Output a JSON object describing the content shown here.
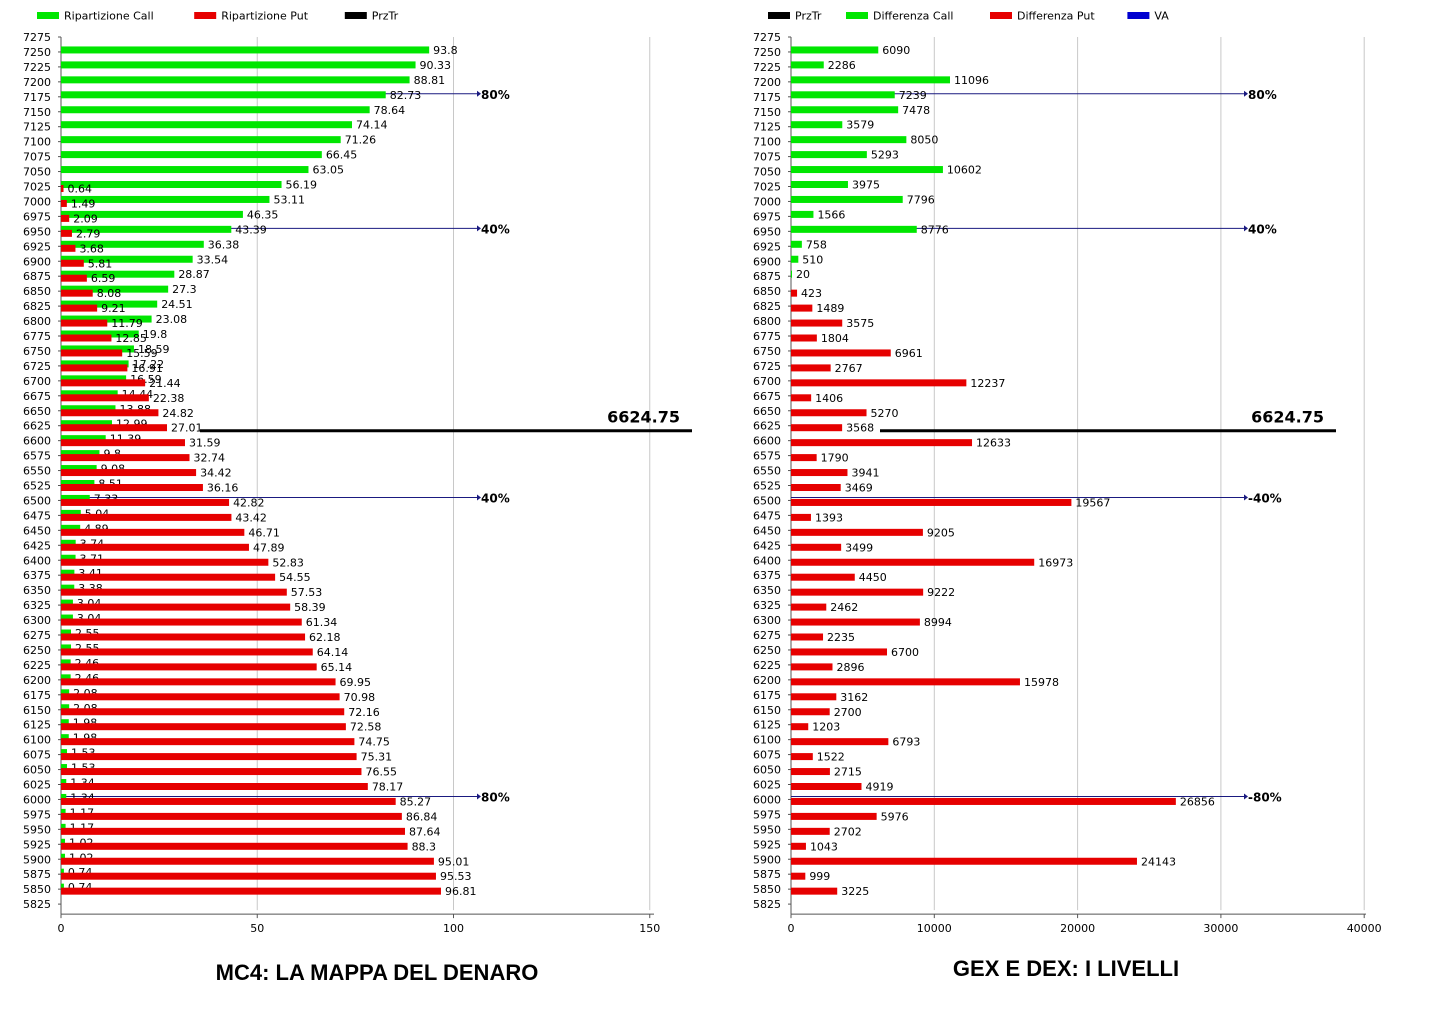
{
  "charts": [
    {
      "caption": "MC4: LA MAPPA DEL DENARO",
      "legend": [
        {
          "label": "Ripartizione Call",
          "color": "#00e600"
        },
        {
          "label": "Ripartizione Put",
          "color": "#e60000"
        },
        {
          "label": "PrzTr",
          "color": "#000000"
        }
      ]
    },
    {
      "caption": "GEX E DEX: I LIVELLI",
      "legend": [
        {
          "label": "PrzTr",
          "color": "#000000"
        },
        {
          "label": "Differenza Call",
          "color": "#00e600"
        },
        {
          "label": "Differenza Put",
          "color": "#e60000"
        },
        {
          "label": "VA",
          "color": "#0000d0"
        }
      ]
    }
  ],
  "chart_data": [
    {
      "type": "bar",
      "orientation": "horizontal",
      "strikes": [
        7275,
        7250,
        7225,
        7200,
        7175,
        7150,
        7125,
        7100,
        7075,
        7050,
        7025,
        7000,
        6975,
        6950,
        6925,
        6900,
        6875,
        6850,
        6825,
        6800,
        6775,
        6750,
        6725,
        6700,
        6675,
        6650,
        6625,
        6600,
        6575,
        6550,
        6525,
        6500,
        6475,
        6450,
        6425,
        6400,
        6375,
        6350,
        6325,
        6300,
        6275,
        6250,
        6225,
        6200,
        6175,
        6150,
        6125,
        6100,
        6075,
        6050,
        6025,
        6000,
        5975,
        5950,
        5925,
        5900,
        5875,
        5850,
        5825
      ],
      "series": [
        {
          "name": "Ripartizione Call",
          "color": "#00e600",
          "values": [
            null,
            93.8,
            90.33,
            88.81,
            82.73,
            78.64,
            74.14,
            71.26,
            66.45,
            63.05,
            56.19,
            53.11,
            46.35,
            43.39,
            36.38,
            33.54,
            28.87,
            27.3,
            24.51,
            23.08,
            19.8,
            18.59,
            17.22,
            16.59,
            14.44,
            13.88,
            12.99,
            11.39,
            9.8,
            9.08,
            8.51,
            7.33,
            5.04,
            4.89,
            3.74,
            3.71,
            3.41,
            3.38,
            3.04,
            3.04,
            2.55,
            2.55,
            2.46,
            2.46,
            2.08,
            2.08,
            1.98,
            1.98,
            1.53,
            1.53,
            1.34,
            1.34,
            1.17,
            1.17,
            1.02,
            1.02,
            0.74,
            0.74,
            null
          ]
        },
        {
          "name": "Ripartizione Put",
          "color": "#e60000",
          "values": [
            null,
            null,
            null,
            null,
            null,
            null,
            null,
            null,
            null,
            null,
            0.64,
            1.49,
            2.09,
            2.79,
            3.68,
            5.81,
            6.59,
            8.08,
            9.21,
            11.79,
            12.85,
            15.59,
            16.91,
            21.44,
            22.38,
            24.82,
            27.01,
            31.59,
            32.74,
            34.42,
            36.16,
            42.82,
            43.42,
            46.71,
            47.89,
            52.83,
            54.55,
            57.53,
            58.39,
            61.34,
            62.18,
            64.14,
            65.14,
            69.95,
            70.98,
            72.16,
            72.58,
            74.75,
            75.31,
            76.55,
            78.17,
            85.27,
            86.84,
            87.64,
            88.3,
            95.01,
            95.53,
            96.81,
            null
          ]
        }
      ],
      "x_ticks": [
        0,
        50,
        100,
        150
      ],
      "xlim": [
        0,
        163
      ],
      "przTr": {
        "value": 6624.75,
        "label": "6624.75"
      },
      "levels": [
        {
          "strike": 7175,
          "label": "80%"
        },
        {
          "strike": 6950,
          "label": "40%"
        },
        {
          "strike": 6500,
          "label": "40%"
        },
        {
          "strike": 6000,
          "label": "80%"
        }
      ]
    },
    {
      "type": "bar",
      "orientation": "horizontal",
      "strikes": [
        7275,
        7250,
        7225,
        7200,
        7175,
        7150,
        7125,
        7100,
        7075,
        7050,
        7025,
        7000,
        6975,
        6950,
        6925,
        6900,
        6875,
        6850,
        6825,
        6800,
        6775,
        6750,
        6725,
        6700,
        6675,
        6650,
        6625,
        6600,
        6575,
        6550,
        6525,
        6500,
        6475,
        6450,
        6425,
        6400,
        6375,
        6350,
        6325,
        6300,
        6275,
        6250,
        6225,
        6200,
        6175,
        6150,
        6125,
        6100,
        6075,
        6050,
        6025,
        6000,
        5975,
        5950,
        5925,
        5900,
        5875,
        5850,
        5825
      ],
      "series": [
        {
          "name": "Differenza Call",
          "color": "#00e600",
          "values": [
            null,
            6090,
            2286,
            11096,
            7239,
            7478,
            3579,
            8050,
            5293,
            10602,
            3975,
            7796,
            1566,
            8776,
            758,
            510,
            20,
            null,
            null,
            null,
            null,
            null,
            null,
            null,
            null,
            null,
            null,
            null,
            null,
            null,
            null,
            null,
            null,
            null,
            null,
            null,
            null,
            null,
            null,
            null,
            null,
            null,
            null,
            null,
            null,
            null,
            null,
            null,
            null,
            null,
            null,
            null,
            null,
            null,
            null,
            null,
            null,
            null,
            null
          ]
        },
        {
          "name": "Differenza Put",
          "color": "#e60000",
          "values": [
            null,
            null,
            null,
            null,
            null,
            null,
            null,
            null,
            null,
            null,
            null,
            null,
            null,
            null,
            null,
            null,
            null,
            423,
            1489,
            3575,
            1804,
            6961,
            2767,
            12237,
            1406,
            5270,
            3568,
            12633,
            1790,
            3941,
            3469,
            19567,
            1393,
            9205,
            3499,
            16973,
            4450,
            9222,
            2462,
            8994,
            2235,
            6700,
            2896,
            15978,
            3162,
            2700,
            1203,
            6793,
            1522,
            2715,
            4919,
            26856,
            5976,
            2702,
            1043,
            24143,
            999,
            3225,
            null
          ]
        }
      ],
      "x_ticks": [
        0,
        10000,
        20000,
        30000,
        40000
      ],
      "xlim": [
        0,
        40500
      ],
      "przTr": {
        "value": 6624.75,
        "label": "6624.75"
      },
      "levels": [
        {
          "strike": 7175,
          "label": "80%"
        },
        {
          "strike": 6950,
          "label": "40%"
        },
        {
          "strike": 6500,
          "label": "-40%"
        },
        {
          "strike": 6000,
          "label": "-80%"
        }
      ]
    }
  ]
}
